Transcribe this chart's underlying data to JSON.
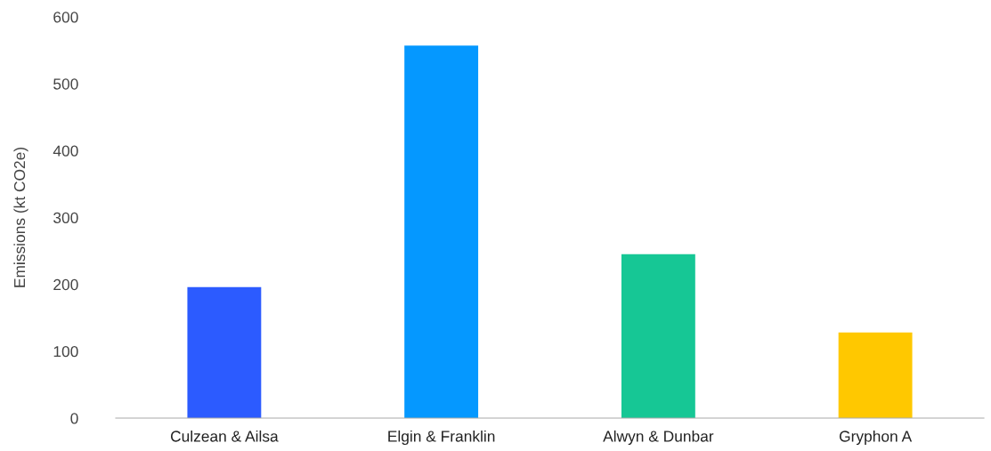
{
  "chart_data": {
    "type": "bar",
    "ylabel": "Emissions (kt CO2e)",
    "categories": [
      "Culzean & Ailsa",
      "Elgin & Franklin",
      "Alwyn & Dunbar",
      "Gryphon A"
    ],
    "values": [
      196,
      557,
      245,
      128
    ],
    "colors": [
      "#2c5bff",
      "#0598ff",
      "#16c795",
      "#ffc800"
    ],
    "ylim": [
      0,
      600
    ],
    "yticks": [
      0,
      100,
      200,
      300,
      400,
      500,
      600
    ],
    "grid": false,
    "legend": false
  }
}
